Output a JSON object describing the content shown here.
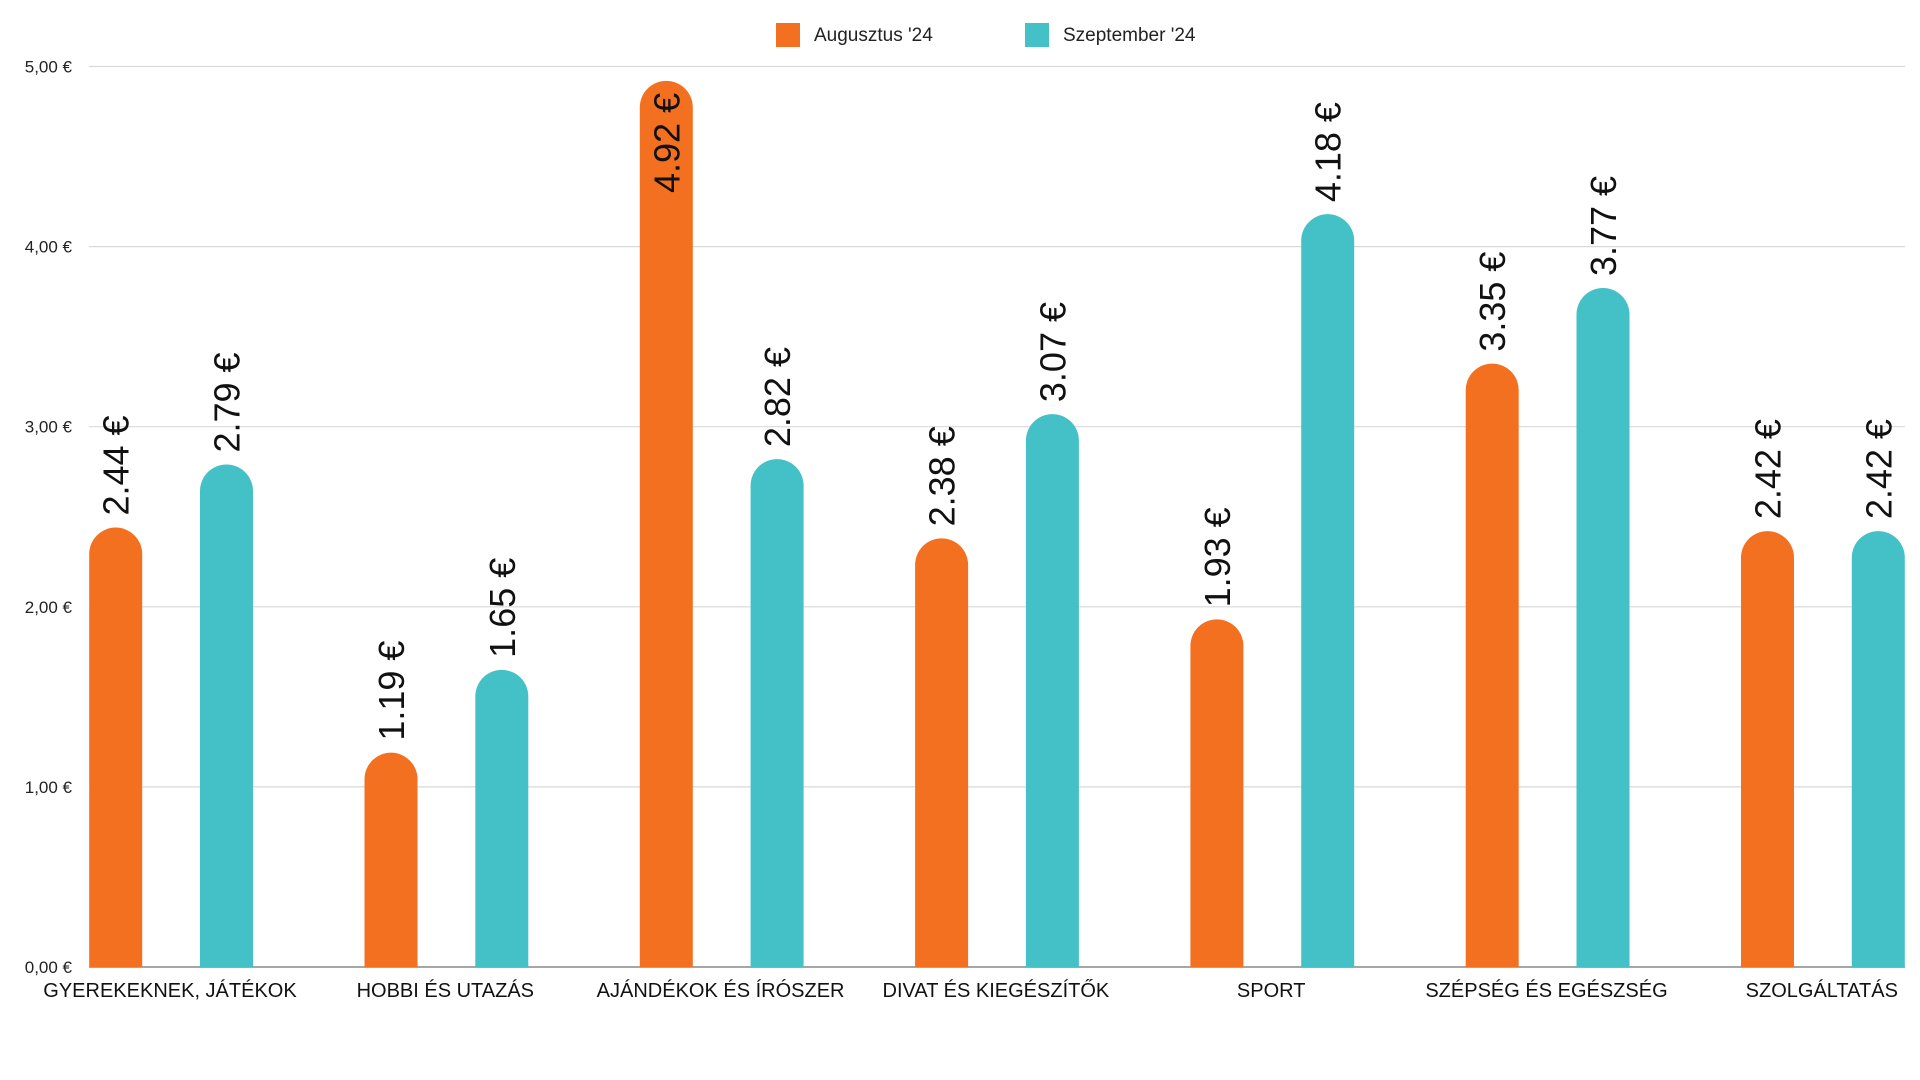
{
  "chart_data": {
    "type": "bar",
    "title": "",
    "xlabel": "",
    "ylabel": "",
    "ylim": [
      0,
      5
    ],
    "yticks": [
      "0,00 €",
      "1,00 €",
      "2,00 €",
      "3,00 €",
      "4,00 €",
      "5,00 €"
    ],
    "grid": true,
    "legend_position": "top-center",
    "categories": [
      "GYEREKEKNEK, JÁTÉKOK",
      "HOBBI ÉS UTAZÁS",
      "AJÁNDÉKOK ÉS ÍRÓSZER",
      "DIVAT ÉS KIEGÉSZÍTŐK",
      "SPORT",
      "SZÉPSÉG ÉS EGÉSZSÉG",
      "SZOLGÁLTATÁS"
    ],
    "series": [
      {
        "name": "Augusztus '24",
        "color": "#F37021",
        "values": [
          2.44,
          1.19,
          4.92,
          2.38,
          1.93,
          3.35,
          2.42
        ],
        "labels": [
          "2.44 €",
          "1.19 €",
          "4.92 €",
          "2.38 €",
          "1.93 €",
          "3.35 €",
          "2.42 €"
        ]
      },
      {
        "name": "Szeptember '24",
        "color": "#43C1C6",
        "values": [
          2.79,
          1.65,
          2.82,
          3.07,
          4.18,
          3.77,
          2.42
        ],
        "labels": [
          "2.79 €",
          "1.65 €",
          "2.82 €",
          "3.07 €",
          "4.18 €",
          "3.77 €",
          "2.42 €"
        ]
      }
    ]
  }
}
